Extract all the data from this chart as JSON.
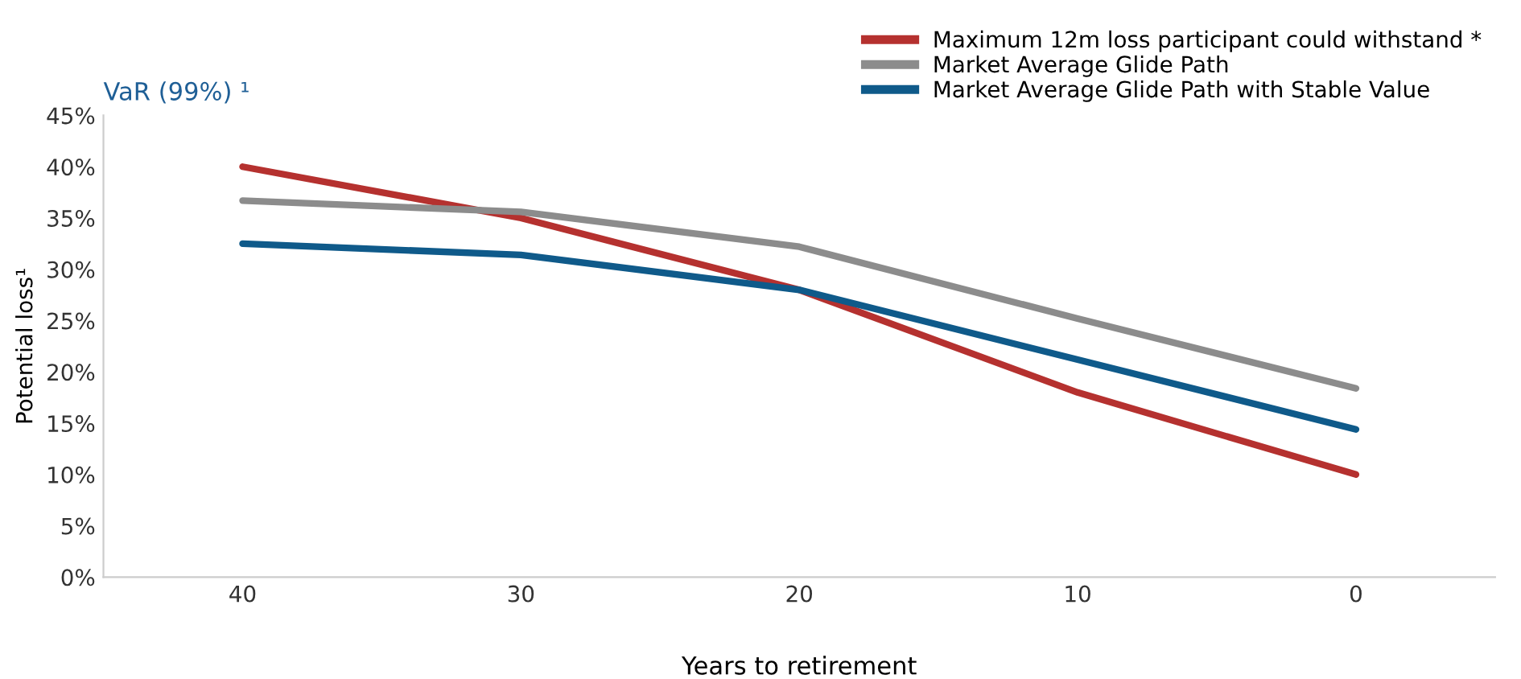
{
  "chart_data": {
    "type": "line",
    "xlabel": "Years to retirement",
    "ylabel": "Potential loss¹",
    "annotations": [
      "VaR (99%) ¹"
    ],
    "categories": [
      "40",
      "30",
      "20",
      "10",
      "0"
    ],
    "series": [
      {
        "name": "Maximum 12m loss participant could withstand *",
        "color": "#b5312f",
        "values": [
          40,
          35,
          28,
          18,
          10
        ]
      },
      {
        "name": "Market Average Glide Path",
        "color": "#8c8c8c",
        "values": [
          36.7,
          35.6,
          32.2,
          25.2,
          18.4
        ]
      },
      {
        "name": "Market Average Glide Path with Stable Value",
        "color": "#0f5a8a",
        "values": [
          32.5,
          31.4,
          28,
          21.2,
          14.4
        ]
      }
    ],
    "ylim": [
      0,
      45
    ],
    "yticks": [
      {
        "value": 0,
        "label": "0%"
      },
      {
        "value": 5,
        "label": "5%"
      },
      {
        "value": 10,
        "label": "10%"
      },
      {
        "value": 15,
        "label": "15%"
      },
      {
        "value": 20,
        "label": "20%"
      },
      {
        "value": 25,
        "label": "25%"
      },
      {
        "value": 30,
        "label": "30%"
      },
      {
        "value": 35,
        "label": "35%"
      },
      {
        "value": 40,
        "label": "40%"
      },
      {
        "value": 45,
        "label": "45%"
      }
    ],
    "grid": false,
    "legend": "top right",
    "marker": "none",
    "line_style": "solid"
  }
}
